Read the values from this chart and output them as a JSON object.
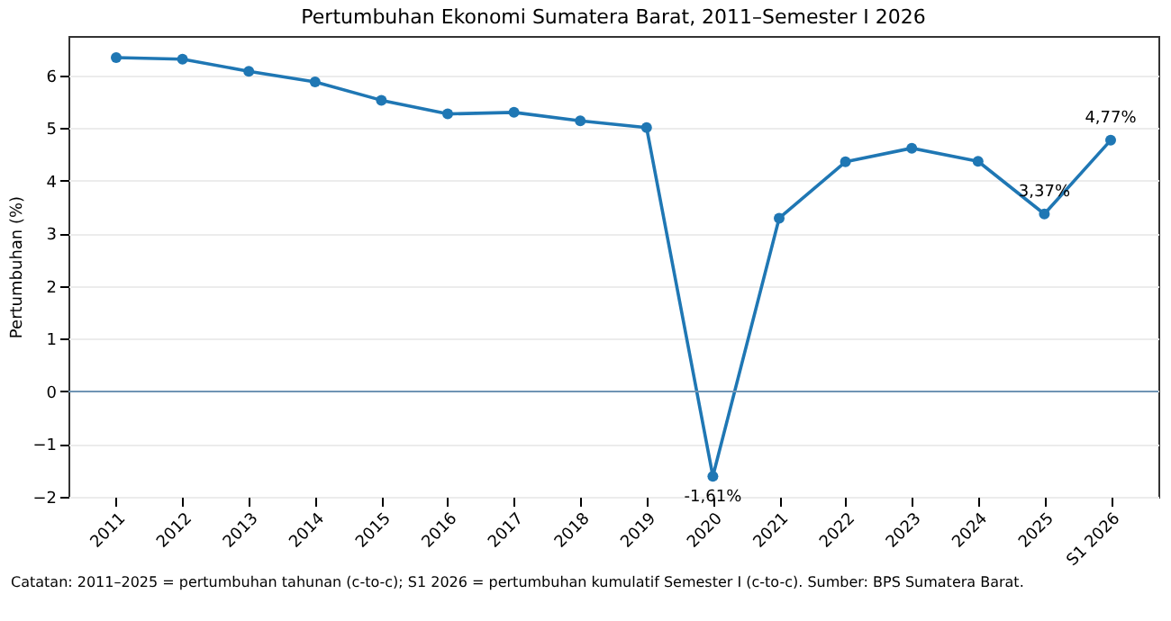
{
  "chart_data": {
    "type": "line",
    "title": "Pertumbuhan Ekonomi Sumatera Barat, 2011–Semester I 2026",
    "ylabel": "Pertumbuhan (%)",
    "categories": [
      "2011",
      "2012",
      "2013",
      "2014",
      "2015",
      "2016",
      "2017",
      "2018",
      "2019",
      "2020",
      "2021",
      "2022",
      "2023",
      "2024",
      "2025",
      "S1 2026"
    ],
    "series": [
      {
        "color": "#1f77b4",
        "values": [
          6.34,
          6.31,
          6.08,
          5.88,
          5.53,
          5.27,
          5.3,
          5.14,
          5.01,
          -1.61,
          3.29,
          4.36,
          4.62,
          4.37,
          3.37,
          4.77
        ]
      }
    ],
    "ylim": [
      -2,
      6.75
    ],
    "yticks": [
      -2,
      -1,
      0,
      1,
      2,
      3,
      4,
      5,
      6
    ],
    "grid": "y",
    "marker": "circle",
    "line_style": "solid",
    "ref_lines": [
      {
        "axis": "y",
        "value": 0,
        "color": "#6f94b4"
      }
    ],
    "annotations": [
      {
        "text": "-1,61%",
        "x": "2020",
        "y": -1.61
      },
      {
        "text": "3,37%",
        "x": "2025",
        "y": 3.37
      },
      {
        "text": "4,77%",
        "x": "S1 2026",
        "y": 4.77
      },
      "Catatan: 2011–2025 = pertumbuhan tahunan (c-to-c); S1 2026 = pertumbuhan kumulatif Semester I (c-to-c). Sumber: BPS Sumatera Barat."
    ]
  }
}
